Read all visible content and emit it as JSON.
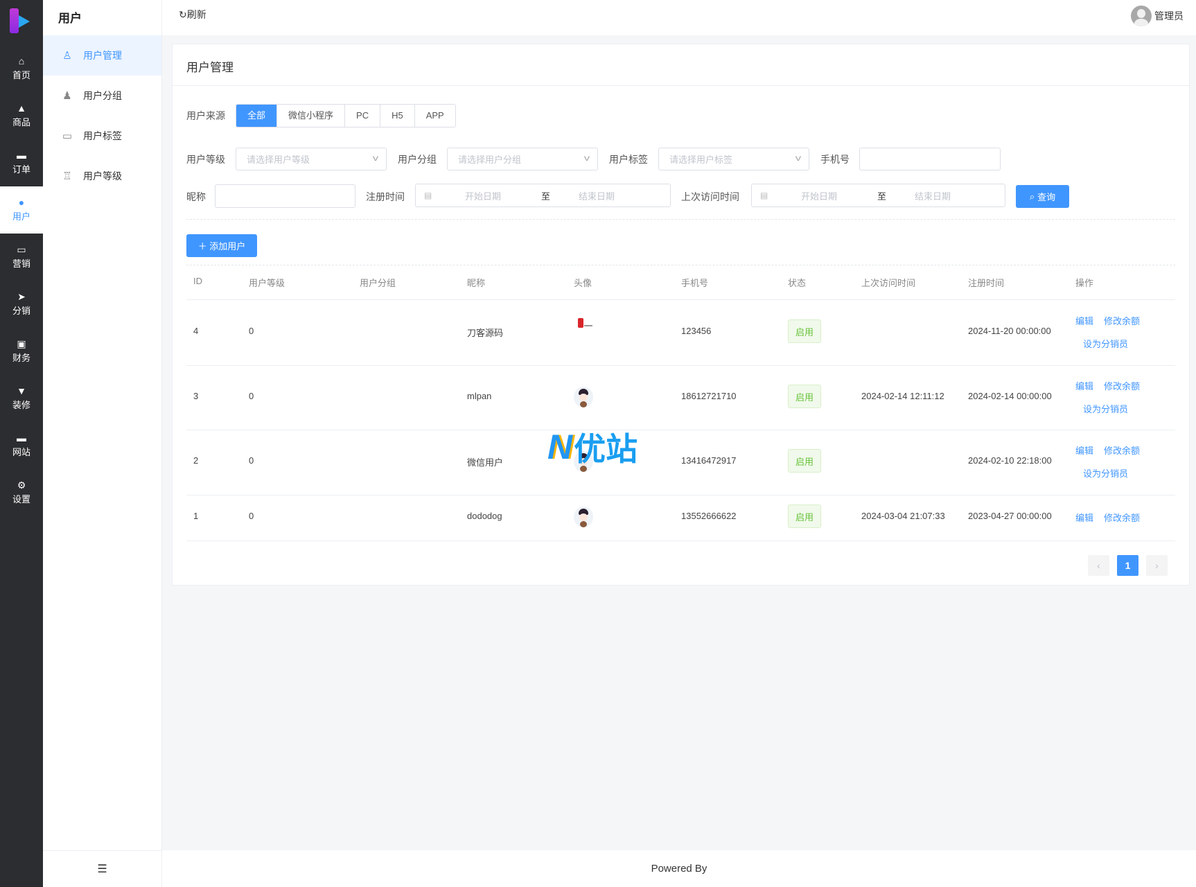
{
  "rail": {
    "items": [
      {
        "label": "首页",
        "icon": "home-icon",
        "glyph": "⌂"
      },
      {
        "label": "商品",
        "icon": "bag-icon",
        "glyph": "▲"
      },
      {
        "label": "订单",
        "icon": "wallet-icon",
        "glyph": "▬"
      },
      {
        "label": "用户",
        "icon": "user-icon",
        "glyph": "●"
      },
      {
        "label": "营销",
        "icon": "ticket-icon",
        "glyph": "▭"
      },
      {
        "label": "分销",
        "icon": "send-icon",
        "glyph": "➤"
      },
      {
        "label": "财务",
        "icon": "money-icon",
        "glyph": "▣"
      },
      {
        "label": "装修",
        "icon": "brush-icon",
        "glyph": "▼"
      },
      {
        "label": "网站",
        "icon": "monitor-icon",
        "glyph": "▬"
      },
      {
        "label": "设置",
        "icon": "gear-icon",
        "glyph": "⚙"
      }
    ],
    "active": 3
  },
  "sub": {
    "title": "用户",
    "items": [
      {
        "label": "用户管理",
        "glyph": "♙"
      },
      {
        "label": "用户分组",
        "glyph": "♟"
      },
      {
        "label": "用户标签",
        "glyph": "▭"
      },
      {
        "label": "用户等级",
        "glyph": "♖"
      }
    ],
    "collapse_glyph": "☰"
  },
  "header": {
    "refresh": "↻刷新",
    "user": "管理员"
  },
  "card": {
    "title": "用户管理",
    "source_label": "用户来源",
    "sources": [
      "全部",
      "微信小程序",
      "PC",
      "H5",
      "APP"
    ],
    "level_label": "用户等级",
    "level_placeholder": "请选择用户等级",
    "group_label": "用户分组",
    "group_placeholder": "请选择用户分组",
    "tag_label": "用户标签",
    "tag_placeholder": "请选择用户标签",
    "phone_label": "手机号",
    "nick_label": "昵称",
    "reg_label": "注册时间",
    "visit_label": "上次访问时间",
    "start_placeholder": "开始日期",
    "end_placeholder": "结束日期",
    "range_sep": "至",
    "query": "查询",
    "add_user": "＋ 添加用户"
  },
  "table": {
    "headers": [
      "ID",
      "用户等级",
      "用户分组",
      "昵称",
      "头像",
      "手机号",
      "状态",
      "上次访问时间",
      "注册时间",
      "操作"
    ],
    "rows": [
      {
        "id": "4",
        "level": "0",
        "group": "",
        "nick": "刀客源码",
        "phone": "123456",
        "status": "启用",
        "visit": "",
        "reg": "2024-11-20 00:00:00",
        "avatar": "logo",
        "distributor": true
      },
      {
        "id": "3",
        "level": "0",
        "group": "",
        "nick": "mlpan",
        "phone": "18612721710",
        "status": "启用",
        "visit": "2024-02-14 12:11:12",
        "reg": "2024-02-14 00:00:00",
        "avatar": "face",
        "distributor": true
      },
      {
        "id": "2",
        "level": "0",
        "group": "",
        "nick": "微信用户",
        "phone": "13416472917",
        "status": "启用",
        "visit": "",
        "reg": "2024-02-10 22:18:00",
        "avatar": "face",
        "distributor": true
      },
      {
        "id": "1",
        "level": "0",
        "group": "",
        "nick": "dododog",
        "phone": "13552666622",
        "status": "启用",
        "visit": "2024-03-04 21:07:33",
        "reg": "2023-04-27 00:00:00",
        "avatar": "face",
        "distributor": false
      }
    ],
    "actions": {
      "edit": "编辑",
      "balance": "修改余额",
      "distributor": "设为分销员"
    }
  },
  "pagination": {
    "prev": "‹",
    "current": "1",
    "next": "›"
  },
  "footer": "Powered By",
  "watermark": "优站",
  "colors": {
    "accent": "#4096ff",
    "rail": "#2c2d30",
    "success": "#67c23a"
  }
}
